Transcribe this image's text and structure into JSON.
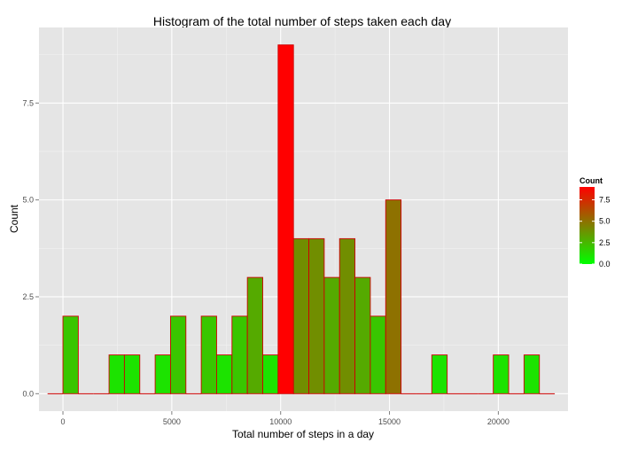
{
  "chart_data": {
    "type": "bar",
    "title": "Histogram of the total number of steps taken each day",
    "xlabel": "Total number of steps in a day",
    "ylabel": "Count",
    "xlim": [
      -1100,
      23200
    ],
    "ylim": [
      -0.45,
      9.45
    ],
    "x_ticks": [
      {
        "value": 0,
        "label": "0"
      },
      {
        "value": 5000,
        "label": "5000"
      },
      {
        "value": 10000,
        "label": "10000"
      },
      {
        "value": 15000,
        "label": "15000"
      },
      {
        "value": 20000,
        "label": "20000"
      }
    ],
    "y_ticks": [
      {
        "value": 0,
        "label": "0.0"
      },
      {
        "value": 2.5,
        "label": "2.5"
      },
      {
        "value": 5,
        "label": "5.0"
      },
      {
        "value": 7.5,
        "label": "7.5"
      }
    ],
    "bin_width": 706,
    "bin_starts": [
      -706,
      0,
      706,
      1412,
      2118,
      2824,
      3530,
      4236,
      4942,
      5648,
      6354,
      7060,
      7766,
      8472,
      9178,
      9884,
      10590,
      11296,
      12002,
      12708,
      13414,
      14120,
      14826,
      15532,
      16238,
      16944,
      17650,
      18356,
      19062,
      19768,
      20474,
      21180,
      21886
    ],
    "counts": [
      0,
      2,
      0,
      0,
      1,
      1,
      0,
      1,
      2,
      0,
      2,
      1,
      2,
      3,
      1,
      9,
      4,
      4,
      3,
      4,
      3,
      2,
      5,
      0,
      0,
      1,
      0,
      0,
      0,
      1,
      0,
      1,
      0
    ],
    "grid": true,
    "legend": {
      "title": "Count",
      "position": "right",
      "low_color": "#00ff00",
      "high_color": "#ff0000",
      "range": [
        0,
        9
      ],
      "ticks": [
        {
          "value": 0,
          "label": "0.0"
        },
        {
          "value": 2.5,
          "label": "2.5"
        },
        {
          "value": 5,
          "label": "5.0"
        },
        {
          "value": 7.5,
          "label": "7.5"
        }
      ]
    },
    "colors": {
      "panel_background": "#e5e5e5",
      "grid_major": "#ffffff",
      "grid_minor": "#f2f2f2",
      "bar_outline": "#cc0000",
      "axis_text": "#4d4d4d"
    }
  }
}
